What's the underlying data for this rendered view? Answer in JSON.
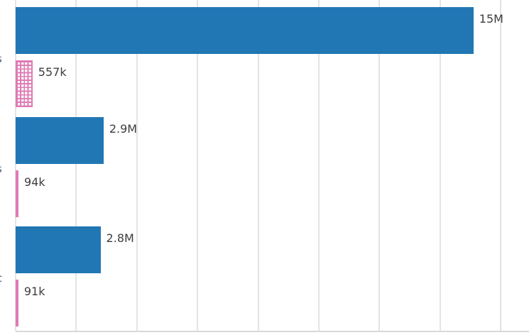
{
  "chart_data": {
    "type": "bar",
    "orientation": "horizontal",
    "title": "",
    "xlabel": "",
    "ylabel": "",
    "background": "#ffffff",
    "grid": {
      "show": true,
      "interval": 2000000,
      "color": "#e4e4e4",
      "tick_labels_visible": false
    },
    "xlim": [
      0,
      16900000
    ],
    "y_tick_label_fragments": [
      "s",
      "s",
      "c"
    ],
    "series": [
      {
        "name": "solid-blue",
        "pattern": "solid",
        "color": "#2177b4",
        "values": [
          15100000,
          2900000,
          2800000
        ],
        "data_labels": [
          "15M",
          "2.9M",
          "2.8M"
        ]
      },
      {
        "name": "crosshatch-pink",
        "pattern": "crosshatch",
        "color": "#e07ab4",
        "values": [
          557000,
          94000,
          91000
        ],
        "data_labels": [
          "557k",
          "94k",
          "91k"
        ]
      }
    ],
    "data_label_color": "#3d3d3d",
    "tick_label_color": "#4d5b75"
  }
}
